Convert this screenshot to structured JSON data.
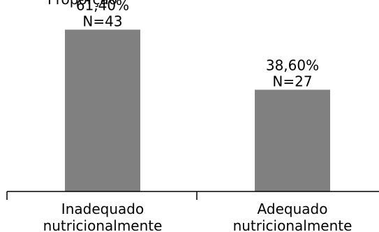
{
  "chart_data": {
    "type": "bar",
    "title": "Proporção",
    "categories": [
      [
        "Inadequado",
        "nutricionalmente"
      ],
      [
        "Adequado",
        "nutricionalmente"
      ]
    ],
    "values": [
      61.4,
      38.6
    ],
    "value_labels": [
      "61,40%",
      "38,60%"
    ],
    "n_labels": [
      "N=43",
      "N=27"
    ],
    "ylim": [
      0,
      70
    ],
    "grid": false,
    "bar_color": "#808080"
  }
}
